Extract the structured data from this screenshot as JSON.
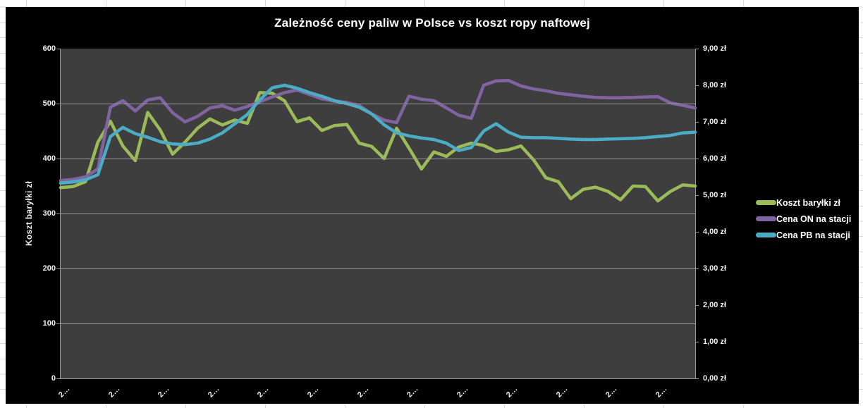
{
  "chart": {
    "title": "Zależność ceny paliw w Polsce vs koszt ropy naftowej",
    "left_axis_title": "Koszt baryłki zł",
    "left_axis_labels_top_to_bottom": [
      "600",
      "500",
      "400",
      "300",
      "200",
      "100",
      "0"
    ],
    "right_axis_labels_top_to_bottom": [
      "9,00 zł",
      "8,00 zł",
      "7,00 zł",
      "6,00 zł",
      "5,00 zł",
      "4,00 zł",
      "3,00 zł",
      "2,00 zł",
      "1,00 zł",
      "0,00 zł"
    ],
    "legend": [
      {
        "label": "Koszt baryłki zł",
        "color": "#9BBB59"
      },
      {
        "label": "Cena ON na stacji",
        "color": "#8064A2"
      },
      {
        "label": "Cena PB na stacji",
        "color": "#4BACC6"
      }
    ],
    "colors": {
      "chart_background": "#000000",
      "plot_background": "#3e3e3e",
      "gridline": "#9a9a9a",
      "text": "#f2f2f2"
    }
  },
  "chart_data": {
    "type": "line",
    "title": "Zależność ceny paliw w Polsce vs koszt ropy naftowej",
    "left_ylabel": "Koszt baryłki zł",
    "left_ylim": [
      0,
      600
    ],
    "left_ytick_step": 100,
    "right_ylim": [
      0,
      9
    ],
    "right_ytick_step": 1,
    "grid": "horizontal-only",
    "legend_position": "right",
    "x_tick_labels_shown": [
      "2…",
      "2…",
      "2…",
      "2…",
      "2…",
      "2…",
      "2…",
      "2…",
      "2…",
      "2…",
      "2…",
      "2…",
      "2…"
    ],
    "x_tick_every_n_points": 4,
    "points_per_series": 52,
    "series": [
      {
        "name": "Koszt baryłki zł",
        "axis": "left",
        "color": "#9BBB59",
        "values": [
          347,
          349,
          358,
          430,
          468,
          423,
          396,
          484,
          452,
          408,
          430,
          455,
          472,
          461,
          470,
          464,
          520,
          519,
          505,
          467,
          474,
          451,
          460,
          462,
          428,
          422,
          400,
          455,
          419,
          381,
          412,
          404,
          421,
          428,
          424,
          413,
          416,
          423,
          398,
          365,
          358,
          327,
          344,
          348,
          340,
          325,
          350,
          349,
          323,
          340,
          352,
          350
        ]
      },
      {
        "name": "Cena ON na stacji",
        "axis": "right",
        "color": "#8064A2",
        "values": [
          5.4,
          5.43,
          5.5,
          5.72,
          7.4,
          7.58,
          7.3,
          7.6,
          7.66,
          7.25,
          7.0,
          7.15,
          7.38,
          7.44,
          7.32,
          7.42,
          7.55,
          7.68,
          7.8,
          7.87,
          7.75,
          7.63,
          7.57,
          7.53,
          7.45,
          7.22,
          7.05,
          6.98,
          7.7,
          7.62,
          7.58,
          7.38,
          7.18,
          7.1,
          8.0,
          8.12,
          8.13,
          7.98,
          7.9,
          7.85,
          7.78,
          7.74,
          7.7,
          7.67,
          7.66,
          7.66,
          7.67,
          7.68,
          7.69,
          7.52,
          7.45,
          7.38
        ]
      },
      {
        "name": "Cena PB na stacji",
        "axis": "right",
        "color": "#4BACC6",
        "values": [
          5.33,
          5.36,
          5.42,
          5.56,
          6.6,
          6.85,
          6.68,
          6.58,
          6.46,
          6.4,
          6.38,
          6.42,
          6.53,
          6.7,
          6.95,
          7.2,
          7.6,
          7.93,
          8.0,
          7.92,
          7.8,
          7.7,
          7.58,
          7.5,
          7.4,
          7.22,
          6.92,
          6.7,
          6.62,
          6.56,
          6.52,
          6.42,
          6.22,
          6.3,
          6.75,
          6.95,
          6.72,
          6.58,
          6.57,
          6.57,
          6.55,
          6.53,
          6.52,
          6.52,
          6.53,
          6.54,
          6.55,
          6.57,
          6.6,
          6.63,
          6.7,
          6.72
        ]
      }
    ]
  }
}
